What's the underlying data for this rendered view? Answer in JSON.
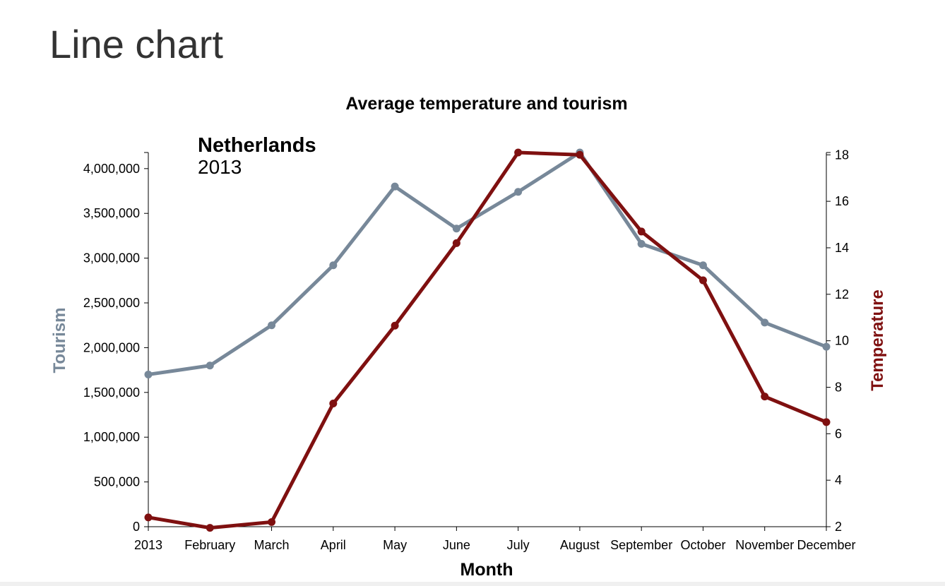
{
  "page": {
    "heading": "Line chart"
  },
  "chart_data": {
    "type": "line",
    "title": "Average temperature and tourism",
    "annotation": {
      "country": "Netherlands",
      "year": "2013"
    },
    "xlabel": "Month",
    "categories": [
      "2013",
      "February",
      "March",
      "April",
      "May",
      "June",
      "July",
      "August",
      "September",
      "October",
      "November",
      "December"
    ],
    "y_left": {
      "label": "Tourism",
      "range": [
        0,
        4180000
      ],
      "ticks": [
        0,
        500000,
        1000000,
        1500000,
        2000000,
        2500000,
        3000000,
        3500000,
        4000000
      ],
      "tick_labels": [
        "0",
        "500,000",
        "1,000,000",
        "1,500,000",
        "2,000,000",
        "2,500,000",
        "3,000,000",
        "3,500,000",
        "4,000,000"
      ]
    },
    "y_right": {
      "label": "Temperature",
      "range": [
        2,
        18.1
      ],
      "ticks": [
        2,
        4,
        6,
        8,
        10,
        12,
        14,
        16,
        18
      ],
      "tick_labels": [
        "2",
        "4",
        "6",
        "8",
        "10",
        "12",
        "14",
        "16",
        "18"
      ]
    },
    "series": [
      {
        "name": "Tourism",
        "axis": "left",
        "color": "#778899",
        "values": [
          1700000,
          1800000,
          2250000,
          2920000,
          3800000,
          3330000,
          3740000,
          4180000,
          3160000,
          2920000,
          2280000,
          2010000
        ]
      },
      {
        "name": "Temperature",
        "axis": "right",
        "color": "#7f1010",
        "values": [
          2.4,
          1.95,
          2.2,
          7.3,
          10.65,
          14.2,
          18.1,
          18.0,
          14.7,
          12.6,
          7.6,
          6.5
        ]
      }
    ],
    "grid": false,
    "legend": "none"
  }
}
